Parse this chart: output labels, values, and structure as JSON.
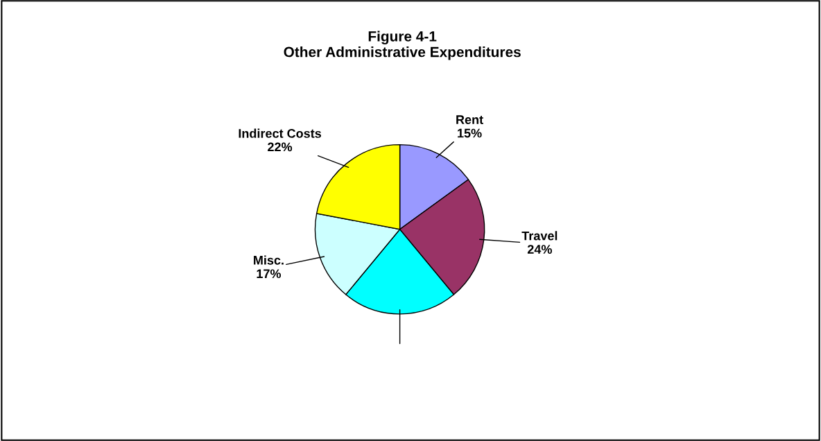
{
  "chart_data": {
    "type": "pie",
    "title": "Figure 4-1\nOther Administrative Expenditures",
    "categories": [
      "Rent",
      "Travel",
      null,
      "Misc.",
      "Indirect Costs"
    ],
    "values": [
      15,
      24,
      22,
      17,
      22
    ],
    "value_labels": [
      "15%",
      "24%",
      null,
      "17%",
      "22%"
    ],
    "colors": [
      "#9999ff",
      "#993366",
      "#00ffff",
      "#ccffff",
      "#ffff00"
    ]
  }
}
